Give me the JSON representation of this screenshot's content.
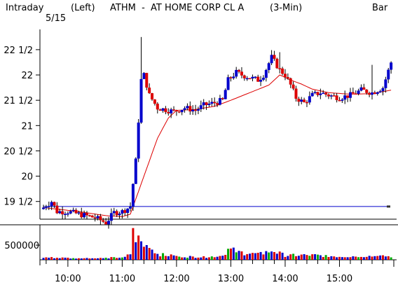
{
  "header": {
    "mode": "Intraday",
    "date": "5/15",
    "axis_side": "(Left)",
    "title": "ATHM  -  AT HOME CORP CL A",
    "interval": "(3-Min)",
    "chart_style": "Bar"
  },
  "colors": {
    "up": "#0000cc",
    "down": "#dd0000",
    "neutral": "#00aa00",
    "moving_average": "#dd0000",
    "reference_line": "#0000cc",
    "wick": "#000000",
    "background": "#ffffff"
  },
  "chart_data": [
    {
      "type": "candlestick",
      "title": "ATHM - AT HOME CORP CL A (3-Min)",
      "xlabel": "",
      "ylabel": "",
      "x_ticks": [
        "10:00",
        "11:00",
        "12:00",
        "13:00",
        "14:00",
        "15:00"
      ],
      "x_tick_minutes": [
        600,
        660,
        720,
        780,
        840,
        900
      ],
      "xlim": [
        573,
        960
      ],
      "y_ticks": [
        "22 1/2",
        "22",
        "21 1/2",
        "21",
        "20 1/2",
        "20",
        "19 1/2"
      ],
      "y_tick_values": [
        22.5,
        22.0,
        21.5,
        21.0,
        20.5,
        20.0,
        19.5
      ],
      "ylim": [
        19.15,
        22.9
      ],
      "reference_line": 19.4,
      "bar_interval_minutes": 3,
      "open": 19.35,
      "high": 22.75,
      "low": 19.05,
      "close": 22.25,
      "ohlc_path": [
        [
          573,
          19.38
        ],
        [
          582,
          19.5
        ],
        [
          588,
          19.3
        ],
        [
          600,
          19.3
        ],
        [
          612,
          19.25
        ],
        [
          630,
          19.18
        ],
        [
          642,
          19.08
        ],
        [
          651,
          19.28
        ],
        [
          660,
          19.3
        ],
        [
          669,
          19.4
        ],
        [
          675,
          20.3
        ],
        [
          681,
          21.9
        ],
        [
          684,
          22.0
        ],
        [
          690,
          21.6
        ],
        [
          699,
          21.35
        ],
        [
          711,
          21.3
        ],
        [
          717,
          21.28
        ],
        [
          729,
          21.35
        ],
        [
          741,
          21.3
        ],
        [
          750,
          21.4
        ],
        [
          762,
          21.45
        ],
        [
          771,
          21.5
        ],
        [
          777,
          21.9
        ],
        [
          786,
          22.05
        ],
        [
          792,
          22.0
        ],
        [
          801,
          21.95
        ],
        [
          810,
          21.9
        ],
        [
          816,
          22.0
        ],
        [
          825,
          22.35
        ],
        [
          834,
          22.1
        ],
        [
          840,
          22.0
        ],
        [
          846,
          21.8
        ],
        [
          852,
          21.55
        ],
        [
          861,
          21.45
        ],
        [
          870,
          21.6
        ],
        [
          879,
          21.65
        ],
        [
          888,
          21.6
        ],
        [
          900,
          21.55
        ],
        [
          912,
          21.6
        ],
        [
          924,
          21.7
        ],
        [
          936,
          21.65
        ],
        [
          948,
          21.75
        ],
        [
          957,
          22.25
        ]
      ],
      "moving_average_path": [
        [
          573,
          19.38
        ],
        [
          612,
          19.3
        ],
        [
          642,
          19.22
        ],
        [
          660,
          19.2
        ],
        [
          669,
          19.25
        ],
        [
          684,
          20.0
        ],
        [
          699,
          20.75
        ],
        [
          711,
          21.15
        ],
        [
          720,
          21.3
        ],
        [
          741,
          21.32
        ],
        [
          762,
          21.38
        ],
        [
          780,
          21.5
        ],
        [
          801,
          21.65
        ],
        [
          822,
          21.8
        ],
        [
          834,
          22.0
        ],
        [
          846,
          21.9
        ],
        [
          858,
          21.82
        ],
        [
          870,
          21.72
        ],
        [
          888,
          21.65
        ],
        [
          912,
          21.62
        ],
        [
          936,
          21.63
        ],
        [
          957,
          21.7
        ]
      ]
    },
    {
      "type": "bar",
      "title": "Volume",
      "y_ticks": [
        "500000"
      ],
      "y_tick_values": [
        500000
      ],
      "ylim": [
        0,
        1100000
      ],
      "volume_path": [
        [
          573,
          80000
        ],
        [
          603,
          60000
        ],
        [
          633,
          50000
        ],
        [
          663,
          90000
        ],
        [
          669,
          200000
        ],
        [
          672,
          900000
        ],
        [
          675,
          780000
        ],
        [
          684,
          500000
        ],
        [
          693,
          380000
        ],
        [
          702,
          180000
        ],
        [
          720,
          120000
        ],
        [
          750,
          90000
        ],
        [
          771,
          140000
        ],
        [
          777,
          360000
        ],
        [
          795,
          230000
        ],
        [
          810,
          180000
        ],
        [
          825,
          320000
        ],
        [
          840,
          150000
        ],
        [
          870,
          160000
        ],
        [
          900,
          110000
        ],
        [
          930,
          130000
        ],
        [
          957,
          110000
        ]
      ]
    }
  ]
}
